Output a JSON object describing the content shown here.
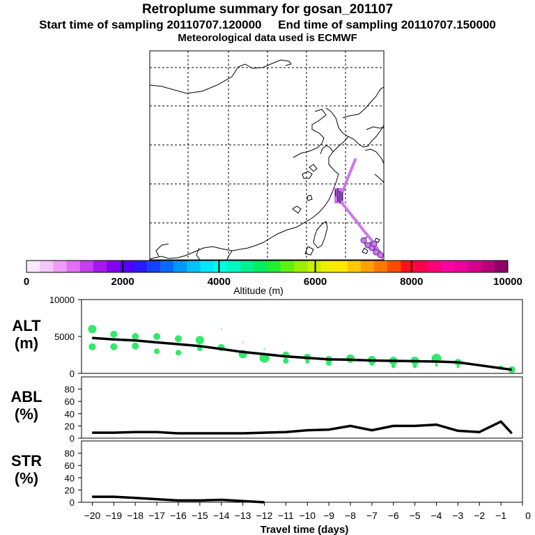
{
  "header": {
    "title": "Retroplume summary for gosan_201107",
    "start_line": "Start time of sampling 20110707.120000     End time of sampling 20110707.150000",
    "met_line": "Meteorological data used is ECMWF"
  },
  "colors": {
    "plume": "#cc77ee",
    "cluster_marker": "#5a2a8a",
    "scatter": "#33e86a",
    "line": "#000000",
    "altitude_scale": [
      "#fbe8fb",
      "#f3c8f8",
      "#ee9cf8",
      "#e070f5",
      "#c83cf0",
      "#a617f0",
      "#8400f2",
      "#5500ff",
      "#2a1aff",
      "#1640ff",
      "#0a6aff",
      "#0099ff",
      "#00c4ff",
      "#00e8ff",
      "#00ffe8",
      "#00f8c0",
      "#00f090",
      "#00ee60",
      "#20ee30",
      "#60f010",
      "#9af000",
      "#c8f000",
      "#eef000",
      "#ffe800",
      "#ffc800",
      "#ffa000",
      "#ff7800",
      "#ff4a00",
      "#ff1020",
      "#ff0050",
      "#ff007a",
      "#ff00a0",
      "#f0009a",
      "#d8008a",
      "#b80078",
      "#900068"
    ]
  },
  "map": {
    "description_label": "Retroplume footprint map"
  },
  "colorbar": {
    "tick_labels": [
      "0",
      "2000",
      "4000",
      "6000",
      "8000",
      "10000"
    ],
    "title": "Altitude (m)"
  },
  "chart_data": [
    {
      "type": "line",
      "panel": "ALT",
      "ylabel_line1": "ALT",
      "ylabel_line2": "(m)",
      "ylim": [
        0,
        10000
      ],
      "yticks": [
        "0",
        "5000",
        "10000"
      ],
      "x": [
        -20,
        -19,
        -18,
        -17,
        -16,
        -15,
        -14,
        -13,
        -12,
        -11,
        -10,
        -9,
        -8,
        -7,
        -6,
        -5,
        -4,
        -3,
        -2,
        -1,
        -0.5
      ],
      "values": [
        4800,
        4600,
        4450,
        4200,
        3950,
        3700,
        3300,
        2900,
        2600,
        2300,
        2100,
        1900,
        1850,
        1750,
        1700,
        1650,
        1600,
        1500,
        1100,
        700,
        500
      ],
      "scatter": [
        {
          "x": -20,
          "y": 6000,
          "s": 6
        },
        {
          "x": -20,
          "y": 3600,
          "s": 5
        },
        {
          "x": -19,
          "y": 5300,
          "s": 5
        },
        {
          "x": -19,
          "y": 3600,
          "s": 5
        },
        {
          "x": -18,
          "y": 5000,
          "s": 5
        },
        {
          "x": -18,
          "y": 3700,
          "s": 5
        },
        {
          "x": -17,
          "y": 5000,
          "s": 5
        },
        {
          "x": -17,
          "y": 3000,
          "s": 4
        },
        {
          "x": -16,
          "y": 4700,
          "s": 5
        },
        {
          "x": -16,
          "y": 2800,
          "s": 4
        },
        {
          "x": -15,
          "y": 4500,
          "s": 6
        },
        {
          "x": -15,
          "y": 3400,
          "s": 4
        },
        {
          "x": -14,
          "y": 3500,
          "s": 5
        },
        {
          "x": -14,
          "y": 6000,
          "s": 1
        },
        {
          "x": -13,
          "y": 2600,
          "s": 6
        },
        {
          "x": -13,
          "y": 4200,
          "s": 1
        },
        {
          "x": -12,
          "y": 2100,
          "s": 7
        },
        {
          "x": -12,
          "y": 3300,
          "s": 1
        },
        {
          "x": -11,
          "y": 2500,
          "s": 5
        },
        {
          "x": -11,
          "y": 1700,
          "s": 4
        },
        {
          "x": -10,
          "y": 2200,
          "s": 5
        },
        {
          "x": -10,
          "y": 1600,
          "s": 3
        },
        {
          "x": -9,
          "y": 1900,
          "s": 5
        },
        {
          "x": -9,
          "y": 1400,
          "s": 4
        },
        {
          "x": -8,
          "y": 2000,
          "s": 6
        },
        {
          "x": -7,
          "y": 1800,
          "s": 6
        },
        {
          "x": -7,
          "y": 1300,
          "s": 3
        },
        {
          "x": -6,
          "y": 1700,
          "s": 6
        },
        {
          "x": -6,
          "y": 1000,
          "s": 3
        },
        {
          "x": -5,
          "y": 1700,
          "s": 6
        },
        {
          "x": -5,
          "y": 1000,
          "s": 3
        },
        {
          "x": -4,
          "y": 2000,
          "s": 7
        },
        {
          "x": -4,
          "y": 1100,
          "s": 2
        },
        {
          "x": -3,
          "y": 1500,
          "s": 5
        },
        {
          "x": -3,
          "y": 900,
          "s": 2
        },
        {
          "x": -1,
          "y": 800,
          "s": 3
        },
        {
          "x": -0.5,
          "y": 500,
          "s": 5
        }
      ]
    },
    {
      "type": "line",
      "panel": "ABL",
      "ylabel_line1": "ABL",
      "ylabel_line2": "(%)",
      "ylim": [
        0,
        100
      ],
      "yticks": [
        "0",
        "20",
        "40",
        "60",
        "80"
      ],
      "x": [
        -20,
        -19,
        -18,
        -17,
        -16,
        -15,
        -14,
        -13,
        -12,
        -11,
        -10,
        -9,
        -8,
        -7,
        -6,
        -5,
        -4,
        -3,
        -2,
        -1,
        -0.5
      ],
      "values": [
        9,
        9,
        10,
        10,
        8,
        8,
        8,
        8,
        9,
        10,
        13,
        14,
        20,
        13,
        20,
        20,
        22,
        12,
        10,
        27,
        8
      ]
    },
    {
      "type": "line",
      "panel": "STR",
      "ylabel_line1": "STR",
      "ylabel_line2": "(%)",
      "ylim": [
        0,
        100
      ],
      "yticks": [
        "0",
        "20",
        "40",
        "60",
        "80"
      ],
      "x": [
        -20,
        -19,
        -18,
        -17,
        -16,
        -15,
        -14,
        -13,
        -12
      ],
      "values": [
        9,
        9,
        7,
        5,
        3,
        3,
        4,
        2,
        0
      ]
    }
  ],
  "xaxis": {
    "tick_labels": [
      "−20",
      "−19",
      "−18",
      "−17",
      "−16",
      "−15",
      "−14",
      "−13",
      "−12",
      "−11",
      "−10",
      "−9",
      "−8",
      "−7",
      "−6",
      "−5",
      "−4",
      "−3",
      "−2",
      "−1",
      "0"
    ],
    "label": "Travel time (days)"
  }
}
